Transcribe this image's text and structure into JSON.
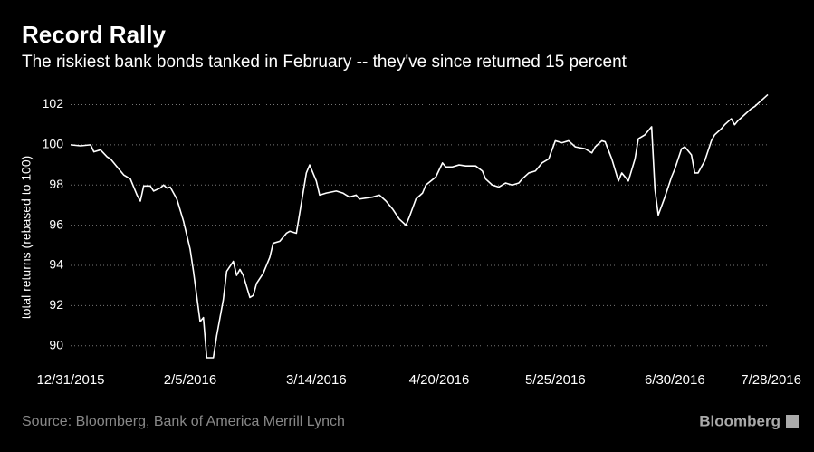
{
  "chart_data": {
    "type": "line",
    "title": "Record Rally",
    "subtitle": "The riskiest bank bonds tanked in February -- they've since returned 15 percent",
    "y_label": "total returns (rebased to 100)",
    "source": "Source: Bloomberg, Bank of America Merrill Lynch",
    "brand": "Bloomberg",
    "color": "#ffffff",
    "grid": true,
    "ylim": [
      89.4,
      102.7
    ],
    "yticks": [
      90,
      92,
      94,
      96,
      98,
      100,
      102
    ],
    "xlim": [
      "2015-12-31",
      "2016-07-28"
    ],
    "xticks": [
      {
        "value": "2015-12-31",
        "label": "12/31/2015"
      },
      {
        "value": "2016-02-05",
        "label": "2/5/2016"
      },
      {
        "value": "2016-03-14",
        "label": "3/14/2016"
      },
      {
        "value": "2016-04-20",
        "label": "4/20/2016"
      },
      {
        "value": "2016-05-25",
        "label": "5/25/2016"
      },
      {
        "value": "2016-06-30",
        "label": "6/30/2016"
      },
      {
        "value": "2016-07-28",
        "label": "7/28/2016"
      }
    ],
    "x": [
      "2015-12-31",
      "2016-01-03",
      "2016-01-06",
      "2016-01-07",
      "2016-01-09",
      "2016-01-11",
      "2016-01-12",
      "2016-01-14",
      "2016-01-16",
      "2016-01-18",
      "2016-01-20",
      "2016-01-21",
      "2016-01-22",
      "2016-01-24",
      "2016-01-25",
      "2016-01-27",
      "2016-01-28",
      "2016-01-29",
      "2016-01-30",
      "2016-02-01",
      "2016-02-03",
      "2016-02-05",
      "2016-02-06",
      "2016-02-08",
      "2016-02-09",
      "2016-02-10",
      "2016-02-12",
      "2016-02-13",
      "2016-02-15",
      "2016-02-16",
      "2016-02-18",
      "2016-02-19",
      "2016-02-20",
      "2016-02-21",
      "2016-02-23",
      "2016-02-24",
      "2016-02-25",
      "2016-02-27",
      "2016-02-29",
      "2016-03-01",
      "2016-03-03",
      "2016-03-05",
      "2016-03-06",
      "2016-03-08",
      "2016-03-09",
      "2016-03-11",
      "2016-03-12",
      "2016-03-14",
      "2016-03-15",
      "2016-03-17",
      "2016-03-20",
      "2016-03-22",
      "2016-03-24",
      "2016-03-26",
      "2016-03-27",
      "2016-03-31",
      "2016-04-02",
      "2016-04-04",
      "2016-04-06",
      "2016-04-08",
      "2016-04-10",
      "2016-04-11",
      "2016-04-13",
      "2016-04-15",
      "2016-04-16",
      "2016-04-19",
      "2016-04-21",
      "2016-04-22",
      "2016-04-24",
      "2016-04-26",
      "2016-04-28",
      "2016-05-01",
      "2016-05-03",
      "2016-05-04",
      "2016-05-06",
      "2016-05-08",
      "2016-05-10",
      "2016-05-12",
      "2016-05-14",
      "2016-05-15",
      "2016-05-17",
      "2016-05-19",
      "2016-05-21",
      "2016-05-23",
      "2016-05-25",
      "2016-05-27",
      "2016-05-29",
      "2016-05-31",
      "2016-06-03",
      "2016-06-05",
      "2016-06-06",
      "2016-06-08",
      "2016-06-09",
      "2016-06-11",
      "2016-06-13",
      "2016-06-14",
      "2016-06-16",
      "2016-06-18",
      "2016-06-19",
      "2016-06-21",
      "2016-06-23",
      "2016-06-24",
      "2016-06-25",
      "2016-06-27",
      "2016-06-29",
      "2016-06-30",
      "2016-07-02",
      "2016-07-03",
      "2016-07-05",
      "2016-07-06",
      "2016-07-07",
      "2016-07-09",
      "2016-07-11",
      "2016-07-12",
      "2016-07-14",
      "2016-07-15",
      "2016-07-17",
      "2016-07-18",
      "2016-07-19",
      "2016-07-21",
      "2016-07-23",
      "2016-07-24",
      "2016-07-26",
      "2016-07-28"
    ],
    "values": [
      100.0,
      99.95,
      100.0,
      99.65,
      99.75,
      99.4,
      99.3,
      98.9,
      98.5,
      98.3,
      97.5,
      97.2,
      97.95,
      97.95,
      97.7,
      97.85,
      98.0,
      97.85,
      97.9,
      97.3,
      96.2,
      94.8,
      93.7,
      91.2,
      91.4,
      89.4,
      89.4,
      90.5,
      92.3,
      93.7,
      94.2,
      93.5,
      93.8,
      93.5,
      92.4,
      92.5,
      93.1,
      93.6,
      94.4,
      95.1,
      95.2,
      95.6,
      95.7,
      95.6,
      96.6,
      98.6,
      99.0,
      98.2,
      97.5,
      97.6,
      97.7,
      97.6,
      97.4,
      97.5,
      97.3,
      97.4,
      97.5,
      97.2,
      96.8,
      96.3,
      96.0,
      96.4,
      97.3,
      97.6,
      98.0,
      98.4,
      99.1,
      98.9,
      98.9,
      99.0,
      98.95,
      98.95,
      98.7,
      98.3,
      98.0,
      97.9,
      98.1,
      98.0,
      98.1,
      98.3,
      98.6,
      98.7,
      99.1,
      99.3,
      100.2,
      100.1,
      100.2,
      99.9,
      99.8,
      99.6,
      99.9,
      100.2,
      100.15,
      99.3,
      98.2,
      98.6,
      98.2,
      99.3,
      100.3,
      100.5,
      100.9,
      97.8,
      96.5,
      97.4,
      98.4,
      98.8,
      99.8,
      99.9,
      99.5,
      98.6,
      98.6,
      99.2,
      100.2,
      100.5,
      100.8,
      101.0,
      101.3,
      101.0,
      101.2,
      101.5,
      101.8,
      101.9,
      102.2,
      102.5
    ]
  }
}
